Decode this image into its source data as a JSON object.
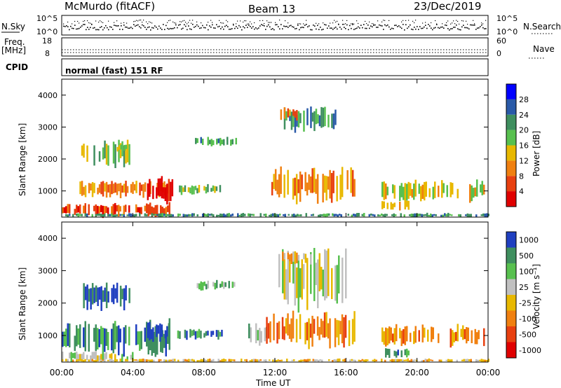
{
  "header": {
    "station": "McMurdo (fitACF)",
    "beam": "Beam 13",
    "date": "23/Dec/2019"
  },
  "top_panels": {
    "nsky_label": "N.Sky",
    "nsky_ticks": [
      "10^5",
      "10^0"
    ],
    "nsearch_label": "N.Search",
    "nsearch_ticks": [
      "10^5",
      "10^0"
    ],
    "freq_label": "Freq.",
    "freq_unit": "[MHz]",
    "freq_ticks": [
      "18",
      "8"
    ],
    "nave_label": "Nave",
    "nave_ticks": [
      "60",
      "0"
    ],
    "cpid_label": "CPID",
    "cpid_text": "normal (fast) 151 RF"
  },
  "x_axis": {
    "label": "Time UT",
    "ticks": [
      "00:00",
      "04:00",
      "08:00",
      "12:00",
      "16:00",
      "20:00",
      "00:00"
    ]
  },
  "colors": {
    "power": [
      "#0000ff",
      "#2a5aa8",
      "#3f8f5f",
      "#58c04f",
      "#e8b800",
      "#f08010",
      "#e84010",
      "#e00000"
    ],
    "velocity": [
      "#2040c0",
      "#3f8f5f",
      "#58c04f",
      "#c0c0c0",
      "#e8b800",
      "#f08010",
      "#e84010",
      "#e00000"
    ]
  },
  "chart_data": [
    {
      "type": "heatmap",
      "panel": "power",
      "ylabel": "Slant Range [km]",
      "y_ticks": [
        "4000",
        "3000",
        "2000",
        "1000"
      ],
      "colorbar_label": "Power [dB]",
      "colorbar_ticks": [
        "28",
        "24",
        "20",
        "16",
        "12",
        "8",
        "4"
      ],
      "ylim": [
        180,
        4500
      ],
      "xlim": [
        0,
        24
      ],
      "patches": [
        {
          "t0": 0.0,
          "t1": 6.2,
          "r0": 200,
          "r1": 600,
          "level": 6
        },
        {
          "t0": 1.0,
          "t1": 6.0,
          "r0": 800,
          "r1": 1300,
          "level": 5
        },
        {
          "t0": 4.8,
          "t1": 6.2,
          "r0": 600,
          "r1": 1400,
          "level": 7
        },
        {
          "t0": 1.0,
          "t1": 3.8,
          "r0": 1800,
          "r1": 2600,
          "level": 3
        },
        {
          "t0": 3.0,
          "t1": 3.6,
          "r0": 2200,
          "r1": 2500,
          "level": 4
        },
        {
          "t0": 6.5,
          "t1": 9.0,
          "r0": 900,
          "r1": 1200,
          "level": 3
        },
        {
          "t0": 7.5,
          "t1": 9.8,
          "r0": 2400,
          "r1": 2700,
          "level": 2
        },
        {
          "t0": 11.8,
          "t1": 16.5,
          "r0": 700,
          "r1": 1700,
          "level": 5
        },
        {
          "t0": 12.5,
          "t1": 15.5,
          "r0": 2900,
          "r1": 3600,
          "level": 2
        },
        {
          "t0": 12.3,
          "t1": 13.2,
          "r0": 3200,
          "r1": 3600,
          "level": 5
        },
        {
          "t0": 18.0,
          "t1": 23.8,
          "r0": 700,
          "r1": 1300,
          "level": 4
        },
        {
          "t0": 18.0,
          "t1": 19.5,
          "r0": 400,
          "r1": 700,
          "level": 4
        },
        {
          "t0": 0.0,
          "t1": 24.0,
          "r0": 180,
          "r1": 300,
          "level": 2
        }
      ]
    },
    {
      "type": "heatmap",
      "panel": "velocity",
      "ylabel": "Slant Range [km]",
      "y_ticks": [
        "4000",
        "3000",
        "2000",
        "1000"
      ],
      "colorbar_label": "Velocity [m s⁻¹]",
      "colorbar_ticks": [
        "1000",
        "500",
        "100",
        "25",
        "-25",
        "-100",
        "-500",
        "-1000"
      ],
      "ylim": [
        180,
        4500
      ],
      "xlim": [
        0,
        24
      ],
      "patches": [
        {
          "t0": 0.0,
          "t1": 6.2,
          "r0": 400,
          "r1": 1400,
          "level": 1
        },
        {
          "t0": 4.8,
          "t1": 6.0,
          "r0": 800,
          "r1": 1400,
          "level": 0
        },
        {
          "t0": 1.2,
          "t1": 3.8,
          "r0": 1800,
          "r1": 2600,
          "level": 0
        },
        {
          "t0": 0.0,
          "t1": 4.0,
          "r0": 180,
          "r1": 500,
          "level": 3
        },
        {
          "t0": 6.5,
          "t1": 9.0,
          "r0": 900,
          "r1": 1200,
          "level": 1
        },
        {
          "t0": 7.5,
          "t1": 9.8,
          "r0": 2400,
          "r1": 2700,
          "level": 2
        },
        {
          "t0": 10.5,
          "t1": 11.5,
          "r0": 700,
          "r1": 1400,
          "level": 2
        },
        {
          "t0": 11.5,
          "t1": 16.5,
          "r0": 700,
          "r1": 1700,
          "level": 5
        },
        {
          "t0": 12.0,
          "t1": 16.0,
          "r0": 1900,
          "r1": 3600,
          "level": 3
        },
        {
          "t0": 12.3,
          "t1": 14.0,
          "r0": 3200,
          "r1": 3600,
          "level": 4
        },
        {
          "t0": 18.0,
          "t1": 23.8,
          "r0": 700,
          "r1": 1300,
          "level": 5
        },
        {
          "t0": 18.0,
          "t1": 19.5,
          "r0": 300,
          "r1": 600,
          "level": 1
        },
        {
          "t0": 0.0,
          "t1": 24.0,
          "r0": 180,
          "r1": 280,
          "level": 4
        }
      ]
    }
  ]
}
